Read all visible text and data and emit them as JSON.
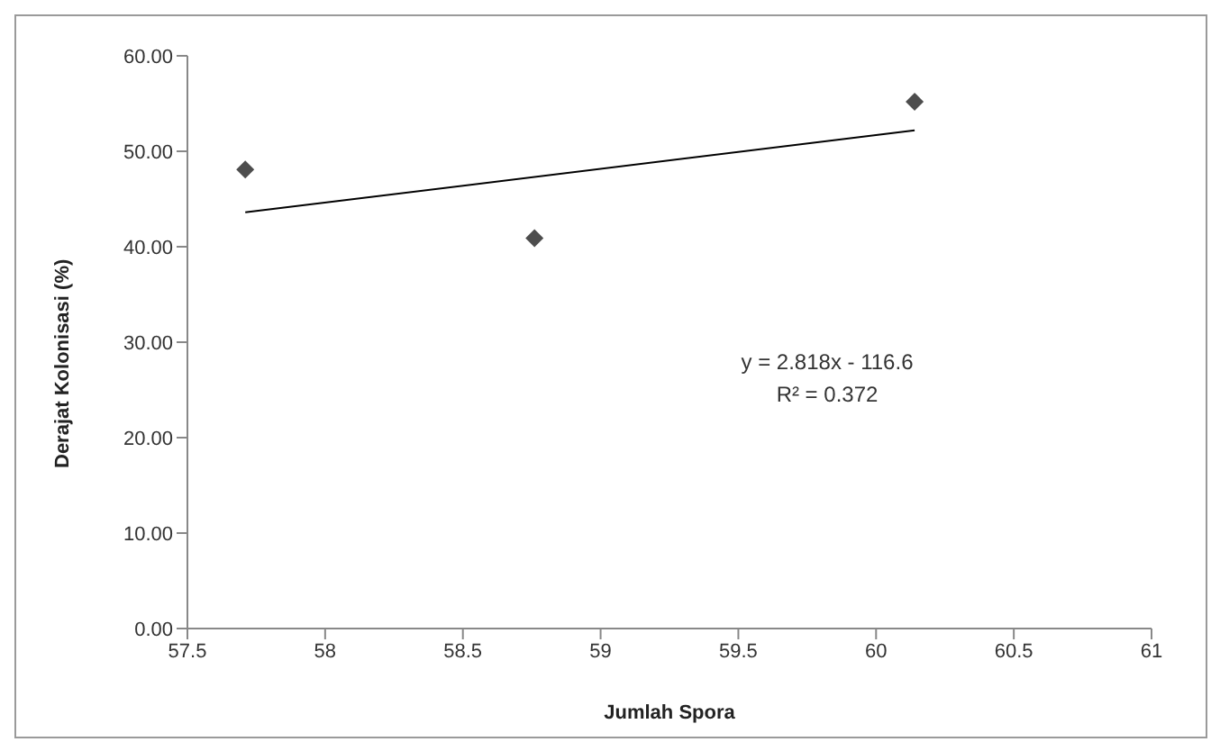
{
  "chart_data": {
    "type": "scatter",
    "xlabel": "Jumlah Spora",
    "ylabel": "Derajat Kolonisasi (%)",
    "series": [
      {
        "color": "#4d4d4d",
        "marker": "diamond",
        "x": [
          57.71,
          58.76,
          60.14
        ],
        "values": [
          48.1,
          40.9,
          55.2
        ]
      },
      {
        "type": "line",
        "color": "#000000",
        "marker": "none",
        "x": [
          57.71,
          60.14
        ],
        "values": [
          43.6,
          52.2
        ]
      }
    ],
    "xlim": [
      57.5,
      61
    ],
    "xticks": [
      57.5,
      58,
      58.5,
      59,
      59.5,
      60,
      60.5,
      61
    ],
    "ylim": [
      0,
      60
    ],
    "yticks": [
      {
        "value": 0,
        "label": "0.00"
      },
      {
        "value": 10,
        "label": "10.00"
      },
      {
        "value": 20,
        "label": "20.00"
      },
      {
        "value": 30,
        "label": "30.00"
      },
      {
        "value": 40,
        "label": "40.00"
      },
      {
        "value": 50,
        "label": "50.00"
      },
      {
        "value": 60,
        "label": "60.00"
      }
    ],
    "annotations": [
      "y = 2.818x - 116.6",
      "R² = 0.372"
    ],
    "grid": false,
    "legend": false
  }
}
